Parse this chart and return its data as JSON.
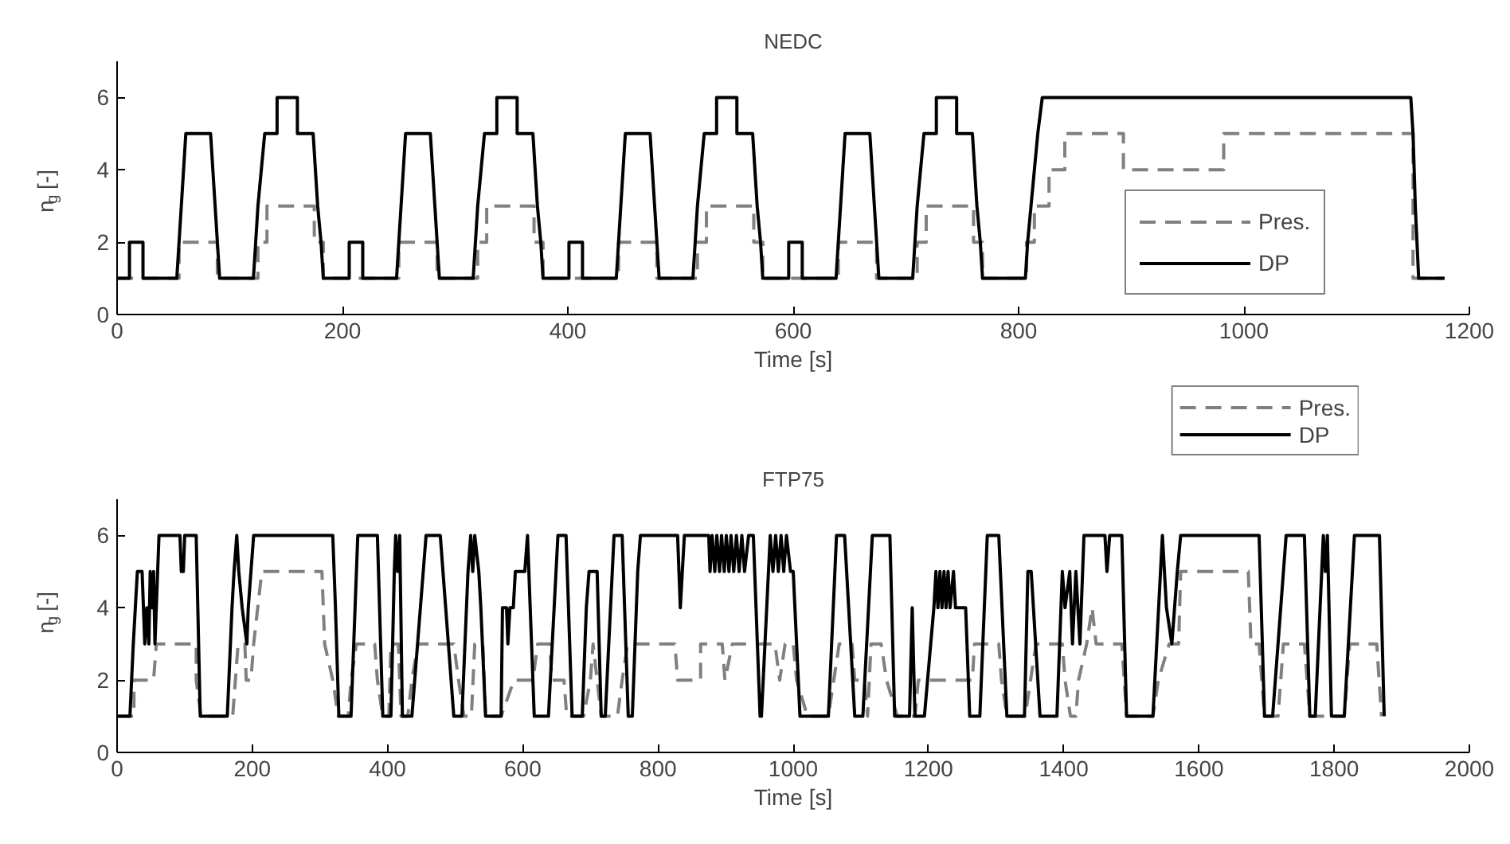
{
  "chart_data": [
    {
      "type": "line",
      "title": "NEDC",
      "xlabel": "Time [s]",
      "ylabel": "n$_{g}$ [-]",
      "xlim": [
        0,
        1200
      ],
      "xticks": [
        0,
        200,
        400,
        600,
        800,
        1000,
        1200
      ],
      "ylim": [
        0,
        7
      ],
      "yticks": [
        0,
        2,
        4,
        6
      ],
      "grid": false,
      "legend": "bottom right",
      "series": [
        {
          "name": "Pres.",
          "color": "#808080",
          "line_style": "dashed",
          "x": [
            0,
            55,
            55,
            89,
            89,
            125,
            125,
            133,
            133,
            175,
            175,
            183,
            183,
            195,
            250,
            250,
            284,
            284,
            320,
            320,
            328,
            328,
            370,
            370,
            378,
            378,
            390,
            445,
            445,
            479,
            479,
            515,
            515,
            523,
            523,
            565,
            565,
            573,
            573,
            585,
            640,
            640,
            674,
            674,
            710,
            710,
            718,
            718,
            760,
            760,
            768,
            768,
            807,
            807,
            814,
            814,
            827,
            827,
            841,
            841,
            893,
            893,
            982,
            982,
            1150,
            1150,
            1178
          ],
          "values": [
            1,
            1,
            2,
            2,
            1,
            1,
            2,
            2,
            3,
            3,
            2,
            2,
            1,
            1,
            1,
            2,
            2,
            1,
            1,
            2,
            2,
            3,
            3,
            2,
            2,
            1,
            1,
            1,
            2,
            2,
            1,
            1,
            2,
            2,
            3,
            3,
            2,
            2,
            1,
            1,
            1,
            2,
            2,
            1,
            1,
            2,
            2,
            3,
            3,
            2,
            2,
            1,
            1,
            2,
            2,
            3,
            3,
            4,
            4,
            5,
            5,
            4,
            4,
            5,
            5,
            1,
            1
          ]
        },
        {
          "name": "DP",
          "color": "#000000",
          "line_style": "solid",
          "x": [
            0,
            11,
            11,
            23,
            23,
            53,
            55,
            57,
            59,
            61,
            83,
            85,
            87,
            89,
            91,
            121,
            123,
            125,
            128,
            131,
            142,
            142,
            160,
            160,
            174,
            176,
            178,
            181,
            183,
            195,
            206,
            206,
            218,
            218,
            248,
            250,
            252,
            254,
            256,
            278,
            280,
            282,
            284,
            286,
            316,
            318,
            320,
            323,
            326,
            337,
            337,
            355,
            355,
            369,
            371,
            373,
            376,
            378,
            390,
            401,
            401,
            413,
            413,
            443,
            445,
            447,
            449,
            451,
            473,
            475,
            477,
            479,
            481,
            511,
            513,
            515,
            518,
            521,
            532,
            532,
            550,
            550,
            564,
            566,
            568,
            571,
            573,
            585,
            596,
            596,
            608,
            608,
            638,
            640,
            642,
            644,
            646,
            668,
            670,
            672,
            674,
            676,
            706,
            708,
            710,
            713,
            716,
            727,
            727,
            745,
            745,
            759,
            761,
            763,
            766,
            768,
            806,
            808,
            811,
            814,
            817,
            821,
            1148,
            1150,
            1152,
            1155,
            1178
          ],
          "values": [
            1,
            1,
            2,
            2,
            1,
            1,
            2,
            3,
            4,
            5,
            5,
            4,
            3,
            2,
            1,
            1,
            2,
            3,
            4,
            5,
            5,
            6,
            6,
            5,
            5,
            4,
            3,
            2,
            1,
            1,
            1,
            2,
            2,
            1,
            1,
            2,
            3,
            4,
            5,
            5,
            4,
            3,
            2,
            1,
            1,
            2,
            3,
            4,
            5,
            5,
            6,
            6,
            5,
            5,
            4,
            3,
            2,
            1,
            1,
            1,
            2,
            2,
            1,
            1,
            2,
            3,
            4,
            5,
            5,
            4,
            3,
            2,
            1,
            1,
            2,
            3,
            4,
            5,
            5,
            6,
            6,
            5,
            5,
            4,
            3,
            2,
            1,
            1,
            1,
            2,
            2,
            1,
            1,
            2,
            3,
            4,
            5,
            5,
            4,
            3,
            2,
            1,
            1,
            2,
            3,
            4,
            5,
            5,
            6,
            6,
            5,
            5,
            4,
            3,
            2,
            1,
            1,
            2,
            3,
            4,
            5,
            6,
            6,
            5,
            3,
            1,
            1
          ]
        }
      ]
    },
    {
      "type": "line",
      "title": "FTP75",
      "xlabel": "Time [s]",
      "ylabel": "n$_{g}$ [-]",
      "xlim": [
        0,
        2000
      ],
      "xticks": [
        0,
        200,
        400,
        600,
        800,
        1000,
        1200,
        1400,
        1600,
        1800,
        2000
      ],
      "ylim": [
        0,
        7
      ],
      "yticks": [
        0,
        2,
        4,
        6
      ],
      "grid": false,
      "legend": "top right",
      "series": [
        {
          "name": "Pres.",
          "color": "#808080",
          "line_style": "dashed",
          "x": [
            0,
            25,
            25,
            54,
            58,
            117,
            117,
            124,
            171,
            175,
            179,
            189,
            191,
            198,
            202,
            214,
            303,
            307,
            319,
            327,
            342,
            346,
            354,
            381,
            385,
            393,
            402,
            405,
            416,
            420,
            430,
            436,
            445,
            498,
            505,
            513,
            524,
            529,
            541,
            545,
            568,
            587,
            615,
            622,
            640,
            643,
            661,
            665,
            690,
            700,
            704,
            710,
            716,
            740,
            747,
            755,
            825,
            829,
            863,
            863,
            895,
            899,
            910,
            973,
            980,
            988,
            1000,
            1005,
            1021,
            1052,
            1060,
            1068,
            1087,
            1091,
            1105,
            1110,
            1115,
            1130,
            1138,
            1154,
            1180,
            1185,
            1217,
            1265,
            1268,
            1304,
            1308,
            1316,
            1343,
            1351,
            1359,
            1398,
            1402,
            1410,
            1418,
            1422,
            1434,
            1442,
            1448,
            1486,
            1493,
            1532,
            1540,
            1556,
            1570,
            1573,
            1673,
            1677,
            1689,
            1697,
            1717,
            1725,
            1756,
            1764,
            1815,
            1823,
            1863,
            1870
          ],
          "values": [
            1,
            1,
            2,
            2,
            3,
            3,
            2,
            1,
            1,
            2,
            3,
            3,
            2,
            2,
            3,
            5,
            5,
            3,
            2,
            1,
            1,
            2,
            3,
            3,
            2,
            1,
            1,
            3,
            3,
            1,
            1,
            2,
            3,
            3,
            2,
            1,
            1,
            3,
            3,
            1,
            1,
            2,
            2,
            3,
            3,
            2,
            2,
            1,
            1,
            2,
            3,
            2,
            1,
            1,
            2,
            3,
            3,
            2,
            2,
            3,
            3,
            2,
            3,
            3,
            2,
            3,
            3,
            2,
            1,
            1,
            2,
            3,
            3,
            2,
            2,
            1,
            3,
            3,
            2,
            1,
            1,
            2,
            2,
            2,
            3,
            3,
            2,
            1,
            1,
            2,
            3,
            3,
            2,
            1,
            1,
            2,
            3,
            4,
            3,
            3,
            1,
            1,
            2,
            3,
            3,
            5,
            5,
            3,
            3,
            1,
            1,
            3,
            3,
            1,
            1,
            3,
            3,
            1
          ]
        },
        {
          "name": "DP",
          "color": "#000000",
          "line_style": "solid",
          "x": [
            0,
            19,
            24,
            30,
            37,
            41,
            44,
            47,
            49,
            52,
            54,
            56,
            62,
            93,
            95,
            98,
            100,
            117,
            123,
            163,
            170,
            173,
            177,
            180,
            185,
            192,
            194,
            198,
            202,
            319,
            323,
            328,
            346,
            356,
            385,
            393,
            405,
            410,
            412,
            415,
            418,
            422,
            436,
            457,
            478,
            498,
            510,
            519,
            523,
            526,
            529,
            535,
            538,
            545,
            568,
            570,
            576,
            578,
            581,
            586,
            589,
            603,
            607,
            617,
            638,
            652,
            664,
            673,
            688,
            694,
            698,
            710,
            716,
            722,
            735,
            747,
            756,
            762,
            770,
            774,
            829,
            833,
            836,
            839,
            875,
            877,
            880,
            884,
            887,
            891,
            894,
            898,
            901,
            905,
            908,
            912,
            916,
            920,
            924,
            928,
            934,
            941,
            951,
            953,
            966,
            970,
            974,
            978,
            982,
            986,
            990,
            996,
            1000,
            1010,
            1052,
            1064,
            1076,
            1091,
            1103,
            1117,
            1143,
            1150,
            1172,
            1176,
            1180,
            1194,
            1208,
            1211,
            1214,
            1217,
            1220,
            1223,
            1226,
            1229,
            1232,
            1237,
            1240,
            1255,
            1261,
            1276,
            1287,
            1304,
            1316,
            1342,
            1347,
            1352,
            1365,
            1390,
            1398,
            1402,
            1409,
            1413,
            1418,
            1424,
            1428,
            1430,
            1461,
            1464,
            1468,
            1486,
            1493,
            1532,
            1546,
            1549,
            1552,
            1560,
            1564,
            1568,
            1573,
            1689,
            1697,
            1709,
            1729,
            1756,
            1764,
            1772,
            1784,
            1787,
            1790,
            1796,
            1815,
            1830,
            1867,
            1874
          ],
          "values": [
            1,
            1,
            3,
            5,
            5,
            3,
            4,
            3,
            5,
            4,
            5,
            3,
            6,
            6,
            5,
            5,
            6,
            6,
            1,
            1,
            4,
            5,
            6,
            5,
            4,
            3,
            4,
            5,
            6,
            6,
            4,
            1,
            1,
            6,
            6,
            1,
            1,
            5,
            6,
            5,
            6,
            1,
            1,
            6,
            6,
            1,
            1,
            5,
            6,
            5,
            6,
            5,
            4,
            1,
            1,
            4,
            4,
            3,
            4,
            4,
            5,
            5,
            6,
            1,
            1,
            6,
            6,
            1,
            1,
            4,
            5,
            5,
            1,
            1,
            6,
            6,
            1,
            1,
            5,
            6,
            6,
            4,
            5,
            6,
            6,
            5,
            6,
            5,
            6,
            5,
            6,
            5,
            6,
            5,
            6,
            5,
            6,
            5,
            6,
            5,
            6,
            6,
            1,
            1,
            6,
            5,
            6,
            5,
            6,
            5,
            6,
            5,
            5,
            1,
            1,
            6,
            6,
            1,
            1,
            6,
            6,
            1,
            1,
            4,
            1,
            1,
            4,
            5,
            4,
            5,
            4,
            5,
            4,
            5,
            4,
            5,
            4,
            4,
            1,
            1,
            6,
            6,
            1,
            1,
            5,
            5,
            1,
            1,
            5,
            4,
            5,
            3,
            5,
            3,
            5,
            6,
            6,
            5,
            6,
            6,
            1,
            1,
            6,
            5,
            4,
            3,
            4,
            5,
            6,
            6,
            1,
            1,
            6,
            6,
            1,
            1,
            6,
            5,
            6,
            1,
            1,
            6,
            6,
            1
          ]
        }
      ]
    }
  ]
}
